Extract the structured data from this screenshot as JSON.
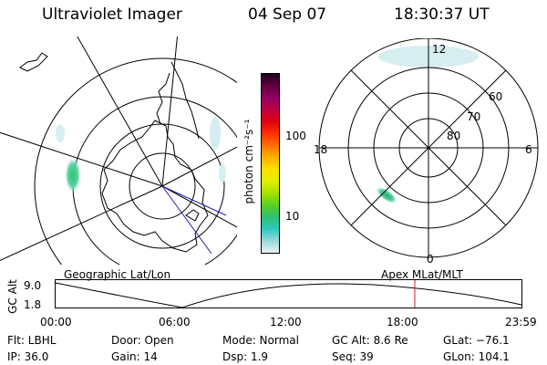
{
  "header": {
    "instrument": "Ultraviolet Imager",
    "date": "04 Sep 07",
    "time": "18:30:37 UT"
  },
  "colorbar": {
    "unit_label": "photon cm⁻²s⁻¹",
    "ticks": [
      "100",
      "10"
    ],
    "colors": [
      "#e8f4f4",
      "#9ad8d8",
      "#2ec8c0",
      "#30c070",
      "#58d020",
      "#a8e000",
      "#e0f000",
      "#ffe000",
      "#ffb000",
      "#ff7000",
      "#ff3000",
      "#e00010",
      "#c00040",
      "#900060",
      "#60003a",
      "#200020"
    ]
  },
  "geo_map": {
    "label": "Geographic Lat/Lon"
  },
  "apex_map": {
    "label": "Apex MLat/MLT",
    "lat_labels": [
      "60",
      "70",
      "80"
    ],
    "mlt_labels": {
      "top": "12",
      "bottom": "0",
      "left": "18",
      "right": "6"
    }
  },
  "timeline": {
    "ylabel": "GC Alt",
    "yticks": [
      "9.0",
      "1.8"
    ],
    "xticks": [
      "00:00",
      "06:00",
      "12:00",
      "18:00",
      "23:59"
    ],
    "marker_fraction": 0.771
  },
  "status": {
    "flt": "Flt: LBHL",
    "door": "Door: Open",
    "mode": "Mode: Normal",
    "gc_alt": "GC Alt: 8.6 Re",
    "glat": "GLat: −76.1",
    "ip": "IP: 36.0",
    "gain": "Gain: 14",
    "dsp": "Dsp:    1.9",
    "seq": "Seq: 39",
    "glon": "GLon: 104.1"
  }
}
